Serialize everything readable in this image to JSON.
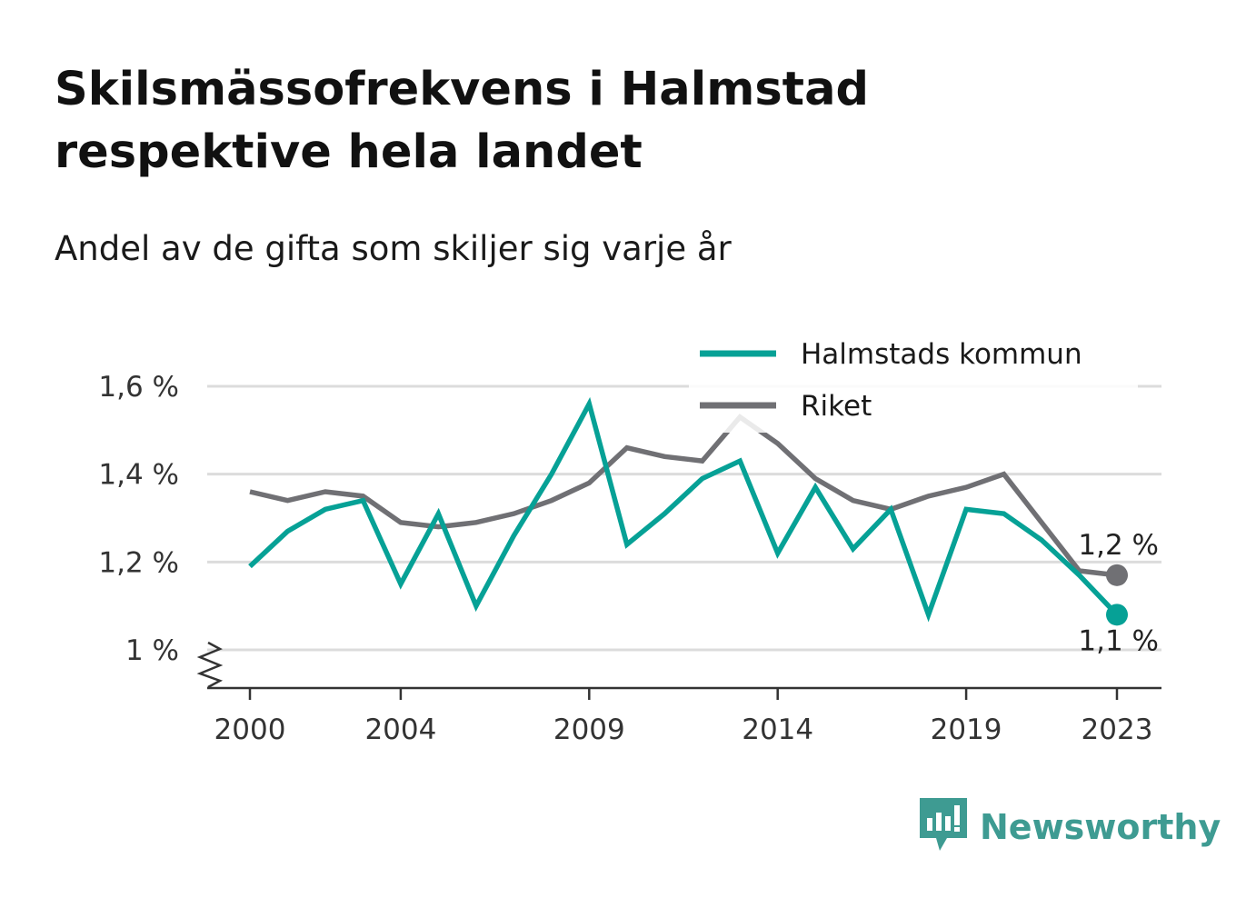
{
  "title": "Skilsmässofrekvens i Halmstad respektive hela landet",
  "subtitle": "Andel av de gifta som skiljer sig varje år",
  "brand": {
    "name": "Newsworthy",
    "icon": "newsworthy-logo-icon",
    "color": "#3e9b92"
  },
  "chart_data": {
    "type": "line",
    "x": [
      2000,
      2001,
      2002,
      2003,
      2004,
      2005,
      2006,
      2007,
      2008,
      2009,
      2010,
      2011,
      2012,
      2013,
      2014,
      2015,
      2016,
      2017,
      2018,
      2019,
      2020,
      2021,
      2022,
      2023
    ],
    "x_ticks": [
      "2000",
      "2004",
      "2009",
      "2014",
      "2019",
      "2023"
    ],
    "y_ticks": [
      "1 %",
      "1,2 %",
      "1,4 %",
      "1,6 %"
    ],
    "y_tick_values": [
      1.0,
      1.2,
      1.4,
      1.6
    ],
    "ylim": [
      0.92,
      1.6
    ],
    "grid": true,
    "legend_position": "top-right",
    "series": [
      {
        "name": "Halmstads kommun",
        "color": "#06a196",
        "values": [
          1.19,
          1.27,
          1.32,
          1.34,
          1.15,
          1.31,
          1.1,
          1.26,
          1.4,
          1.56,
          1.24,
          1.31,
          1.39,
          1.43,
          1.22,
          1.37,
          1.23,
          1.32,
          1.08,
          1.32,
          1.31,
          1.25,
          1.17,
          1.08
        ],
        "end_label": "1,1 %"
      },
      {
        "name": "Riket",
        "color": "#707074",
        "values": [
          1.36,
          1.34,
          1.36,
          1.35,
          1.29,
          1.28,
          1.29,
          1.31,
          1.34,
          1.38,
          1.46,
          1.44,
          1.43,
          1.53,
          1.47,
          1.39,
          1.34,
          1.32,
          1.35,
          1.37,
          1.4,
          1.29,
          1.18,
          1.17
        ],
        "end_label": "1,2 %"
      }
    ]
  }
}
